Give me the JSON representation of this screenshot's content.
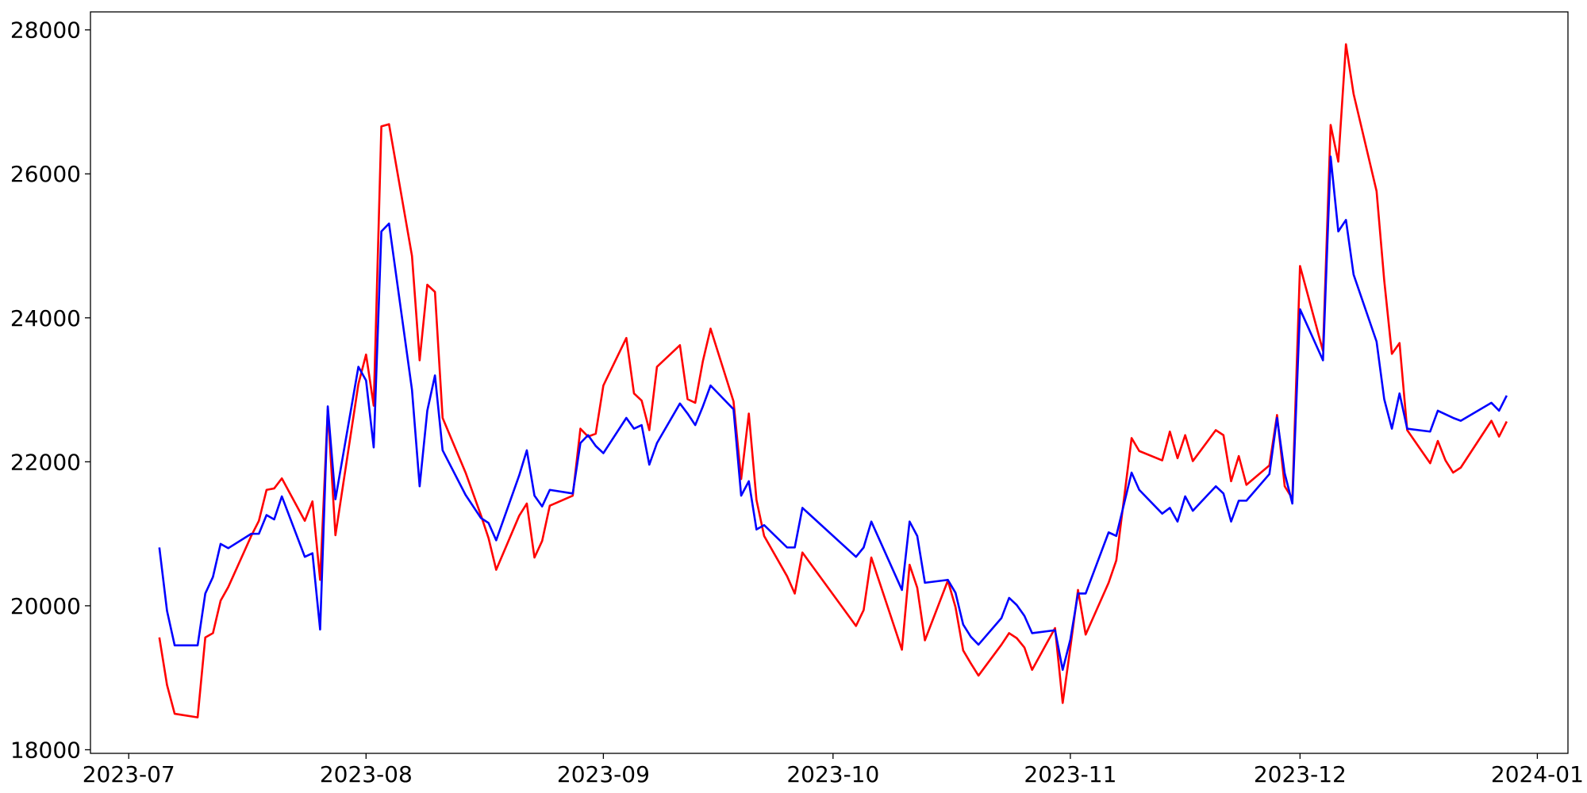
{
  "chart_data": {
    "type": "line",
    "x": [
      "2023-07-05",
      "2023-07-06",
      "2023-07-07",
      "2023-07-10",
      "2023-07-11",
      "2023-07-12",
      "2023-07-13",
      "2023-07-14",
      "2023-07-17",
      "2023-07-18",
      "2023-07-19",
      "2023-07-20",
      "2023-07-21",
      "2023-07-24",
      "2023-07-25",
      "2023-07-26",
      "2023-07-27",
      "2023-07-28",
      "2023-07-31",
      "2023-08-01",
      "2023-08-02",
      "2023-08-03",
      "2023-08-04",
      "2023-08-07",
      "2023-08-08",
      "2023-08-09",
      "2023-08-10",
      "2023-08-11",
      "2023-08-14",
      "2023-08-16",
      "2023-08-17",
      "2023-08-18",
      "2023-08-21",
      "2023-08-22",
      "2023-08-23",
      "2023-08-24",
      "2023-08-25",
      "2023-08-28",
      "2023-08-29",
      "2023-08-30",
      "2023-08-31",
      "2023-09-01",
      "2023-09-04",
      "2023-09-05",
      "2023-09-06",
      "2023-09-07",
      "2023-09-08",
      "2023-09-11",
      "2023-09-12",
      "2023-09-13",
      "2023-09-14",
      "2023-09-15",
      "2023-09-18",
      "2023-09-19",
      "2023-09-20",
      "2023-09-21",
      "2023-09-22",
      "2023-09-25",
      "2023-09-26",
      "2023-09-27",
      "2023-10-04",
      "2023-10-05",
      "2023-10-06",
      "2023-10-10",
      "2023-10-11",
      "2023-10-12",
      "2023-10-13",
      "2023-10-16",
      "2023-10-17",
      "2023-10-18",
      "2023-10-19",
      "2023-10-20",
      "2023-10-23",
      "2023-10-24",
      "2023-10-25",
      "2023-10-26",
      "2023-10-27",
      "2023-10-30",
      "2023-10-31",
      "2023-11-01",
      "2023-11-02",
      "2023-11-03",
      "2023-11-06",
      "2023-11-07",
      "2023-11-09",
      "2023-11-10",
      "2023-11-13",
      "2023-11-14",
      "2023-11-15",
      "2023-11-16",
      "2023-11-17",
      "2023-11-20",
      "2023-11-21",
      "2023-11-22",
      "2023-11-23",
      "2023-11-24",
      "2023-11-27",
      "2023-11-28",
      "2023-11-29",
      "2023-11-30",
      "2023-12-01",
      "2023-12-04",
      "2023-12-05",
      "2023-12-06",
      "2023-12-07",
      "2023-12-08",
      "2023-12-11",
      "2023-12-12",
      "2023-12-13",
      "2023-12-14",
      "2023-12-15",
      "2023-12-18",
      "2023-12-19",
      "2023-12-20",
      "2023-12-21",
      "2023-12-22",
      "2023-12-26",
      "2023-12-27",
      "2023-12-28"
    ],
    "series": [
      {
        "color": "red",
        "values": [
          19560,
          18900,
          18500,
          18450,
          19560,
          19620,
          20070,
          20260,
          20970,
          21180,
          21610,
          21630,
          21770,
          21180,
          21450,
          20360,
          22730,
          20980,
          23080,
          23490,
          22780,
          26660,
          26690,
          24860,
          23410,
          24460,
          24360,
          22610,
          21850,
          21260,
          20940,
          20500,
          21250,
          21420,
          20670,
          20900,
          21390,
          21530,
          22460,
          22350,
          22390,
          23060,
          23720,
          22950,
          22850,
          22440,
          23320,
          23620,
          22870,
          22820,
          23400,
          23850,
          22840,
          21760,
          22670,
          21470,
          20970,
          20410,
          20170,
          20740,
          19720,
          19940,
          20670,
          19390,
          20570,
          20250,
          19520,
          20350,
          19980,
          19380,
          19200,
          19030,
          19460,
          19620,
          19550,
          19420,
          19110,
          19690,
          18650,
          19420,
          20220,
          19600,
          20320,
          20630,
          22330,
          22150,
          22020,
          22420,
          22050,
          22370,
          22010,
          22440,
          22370,
          21730,
          22080,
          21680,
          21950,
          22650,
          21660,
          21490,
          24720,
          23540,
          26680,
          26170,
          27800,
          27110,
          25760,
          24520,
          23500,
          23650,
          22440,
          21980,
          22290,
          22020,
          21850,
          21920,
          22570,
          22350,
          22560
        ]
      },
      {
        "color": "blue",
        "values": [
          20810,
          19930,
          19450,
          19450,
          20170,
          20400,
          20860,
          20800,
          21000,
          21000,
          21260,
          21200,
          21520,
          20680,
          20730,
          19670,
          22770,
          21480,
          23320,
          23130,
          22200,
          25200,
          25310,
          23000,
          21660,
          22710,
          23200,
          22160,
          21540,
          21220,
          21150,
          20910,
          21810,
          22160,
          21530,
          21380,
          21610,
          21560,
          22260,
          22370,
          22220,
          22120,
          22610,
          22460,
          22510,
          21960,
          22260,
          22810,
          22670,
          22510,
          22770,
          23060,
          22730,
          21530,
          21730,
          21060,
          21120,
          20810,
          20810,
          21360,
          20680,
          20810,
          21170,
          20220,
          21170,
          20970,
          20320,
          20360,
          20180,
          19740,
          19570,
          19460,
          19830,
          20110,
          20010,
          19860,
          19620,
          19660,
          19110,
          19530,
          20170,
          20170,
          21020,
          20970,
          21850,
          21610,
          21280,
          21360,
          21170,
          21520,
          21320,
          21660,
          21560,
          21170,
          21460,
          21460,
          21830,
          22610,
          21840,
          21420,
          24120,
          23410,
          26240,
          25200,
          25360,
          24600,
          23670,
          22870,
          22460,
          22950,
          22460,
          22420,
          22710,
          22660,
          22610,
          22570,
          22820,
          22710,
          22920
        ]
      }
    ],
    "xlim": [
      "2023-06-26",
      "2024-01-05"
    ],
    "xticks": [
      {
        "value": "2023-07-01",
        "label": "2023-07"
      },
      {
        "value": "2023-08-01",
        "label": "2023-08"
      },
      {
        "value": "2023-09-01",
        "label": "2023-09"
      },
      {
        "value": "2023-10-01",
        "label": "2023-10"
      },
      {
        "value": "2023-11-01",
        "label": "2023-11"
      },
      {
        "value": "2023-12-01",
        "label": "2023-12"
      },
      {
        "value": "2024-01-01",
        "label": "2024-01"
      }
    ],
    "ylim": [
      17950,
      28250
    ],
    "yticks": [
      18000,
      20000,
      22000,
      24000,
      26000,
      28000
    ],
    "grid": false
  }
}
